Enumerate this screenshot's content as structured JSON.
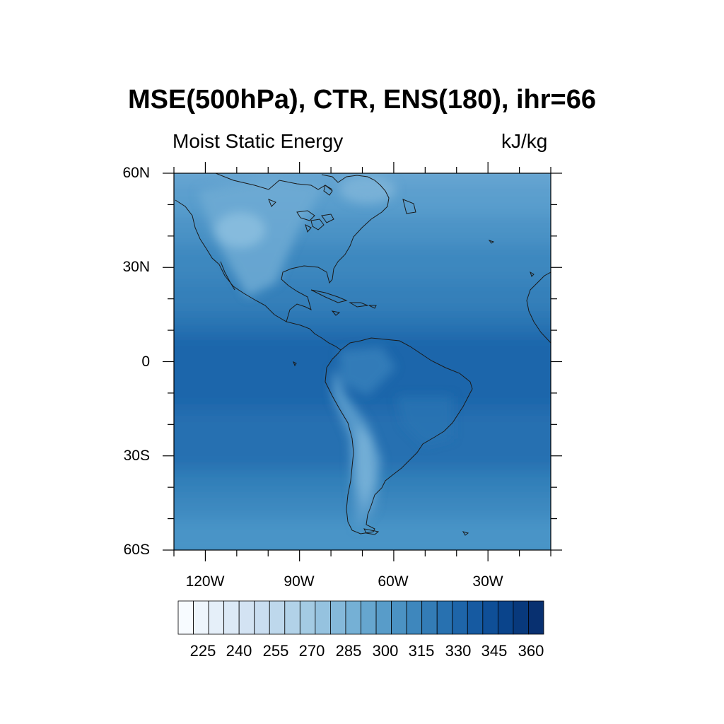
{
  "title": "MSE(500hPa), CTR, ENS(180), ihr=66",
  "subtitle_left": "Moist Static Energy",
  "subtitle_right": "kJ/kg",
  "lat_labels": [
    "60N",
    "30N",
    "0",
    "30S",
    "60S"
  ],
  "lon_labels": [
    "120W",
    "90W",
    "60W",
    "30W"
  ],
  "colorbar": {
    "labels": [
      "225",
      "240",
      "255",
      "270",
      "285",
      "300",
      "315",
      "330",
      "345",
      "360"
    ],
    "colors": [
      "#f7fbff",
      "#eef5fc",
      "#e5eff9",
      "#dce9f6",
      "#d3e3f3",
      "#c9ddf0",
      "#bed8ec",
      "#b2d2e8",
      "#a4cbe3",
      "#95c2df",
      "#85b9da",
      "#75b0d5",
      "#66a6cf",
      "#589cc9",
      "#4b92c3",
      "#3e87bd",
      "#337cb6",
      "#2871b0",
      "#1e65a9",
      "#165aa1",
      "#0f4f97",
      "#0a448b",
      "#08397c",
      "#083070"
    ]
  },
  "map": {
    "lon_range": [
      -130,
      -10
    ],
    "lat_range": [
      -60,
      60
    ],
    "field_colors": {
      "band_high_lat": "#4f97c8",
      "band_mid": "#3a84bd",
      "band_tropics": "#2a73b3",
      "band_equator": "#1f67ab",
      "highland_light": "#6eaad4",
      "coast_color": "#1a1a1a"
    }
  }
}
